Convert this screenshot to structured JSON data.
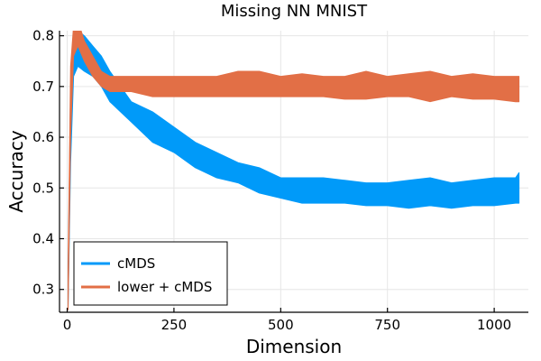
{
  "chart_data": {
    "type": "area",
    "title": "Missing NN MNIST",
    "xlabel": "Dimension",
    "ylabel": "Accuracy",
    "xlim": [
      -18,
      1080
    ],
    "ylim": [
      0.255,
      0.81
    ],
    "xticks": [
      0,
      250,
      500,
      750,
      1000
    ],
    "xtick_labels": [
      "0",
      "250",
      "500",
      "750",
      "1000"
    ],
    "yticks": [
      0.3,
      0.4,
      0.5,
      0.6,
      0.7,
      0.8
    ],
    "ytick_labels": [
      "0.3",
      "0.4",
      "0.5",
      "0.6",
      "0.7",
      "0.8"
    ],
    "grid": true,
    "legend_position": "bottom-left",
    "series": [
      {
        "name": "cMDS",
        "color": "#009af9",
        "x": [
          2,
          8,
          15,
          25,
          40,
          60,
          80,
          100,
          150,
          200,
          250,
          300,
          350,
          400,
          450,
          500,
          550,
          600,
          650,
          700,
          750,
          800,
          850,
          900,
          950,
          1000,
          1050,
          1058
        ],
        "lower": [
          0.26,
          0.55,
          0.72,
          0.74,
          0.73,
          0.72,
          0.7,
          0.67,
          0.63,
          0.59,
          0.57,
          0.54,
          0.52,
          0.51,
          0.49,
          0.48,
          0.47,
          0.47,
          0.47,
          0.465,
          0.465,
          0.46,
          0.465,
          0.46,
          0.465,
          0.465,
          0.47,
          0.47
        ],
        "upper": [
          0.32,
          0.7,
          0.79,
          0.81,
          0.8,
          0.78,
          0.76,
          0.73,
          0.67,
          0.65,
          0.62,
          0.59,
          0.57,
          0.55,
          0.54,
          0.52,
          0.52,
          0.52,
          0.515,
          0.51,
          0.51,
          0.515,
          0.52,
          0.51,
          0.515,
          0.52,
          0.52,
          0.53
        ]
      },
      {
        "name": "lower + cMDS",
        "color": "#e26f46",
        "x": [
          2,
          8,
          15,
          25,
          40,
          60,
          80,
          100,
          150,
          200,
          250,
          300,
          350,
          400,
          450,
          500,
          550,
          600,
          650,
          700,
          750,
          800,
          850,
          900,
          950,
          1000,
          1050,
          1058
        ],
        "lower": [
          0.26,
          0.6,
          0.76,
          0.78,
          0.75,
          0.72,
          0.7,
          0.69,
          0.69,
          0.68,
          0.68,
          0.68,
          0.68,
          0.68,
          0.68,
          0.68,
          0.68,
          0.68,
          0.675,
          0.675,
          0.68,
          0.68,
          0.67,
          0.68,
          0.675,
          0.675,
          0.67,
          0.67
        ],
        "upper": [
          0.34,
          0.74,
          0.82,
          0.83,
          0.79,
          0.76,
          0.73,
          0.72,
          0.72,
          0.72,
          0.72,
          0.72,
          0.72,
          0.73,
          0.73,
          0.72,
          0.725,
          0.72,
          0.72,
          0.73,
          0.72,
          0.725,
          0.73,
          0.72,
          0.725,
          0.72,
          0.72,
          0.72
        ]
      }
    ]
  }
}
